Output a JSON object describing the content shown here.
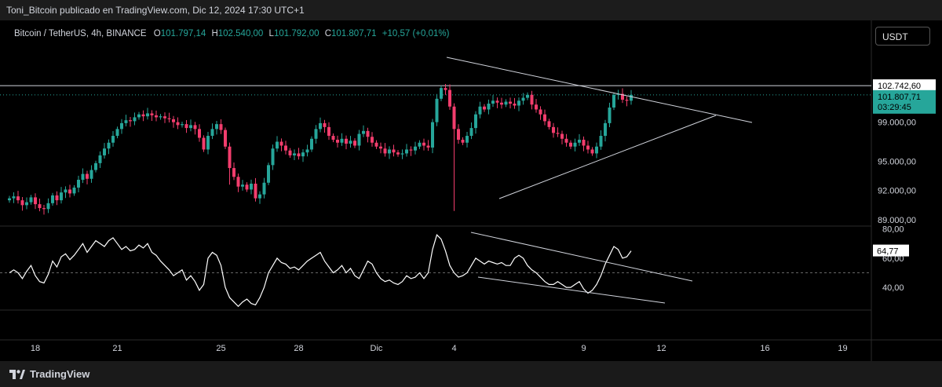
{
  "header": {
    "publisher_line": "Toni_Bitcoin publicado en TradingView.com, Dic 12, 2024 17:30 UTC+1"
  },
  "legend": {
    "symbol": "Bitcoin / TetherUS, 4h, BINANCE",
    "o_label": "O",
    "o_value": "101.797,14",
    "h_label": "H",
    "h_value": "102.540,00",
    "l_label": "L",
    "l_value": "101.792,00",
    "c_label": "C",
    "c_value": "101.807,71",
    "change": "+10,57 (+0,01%)"
  },
  "toolbar": {
    "currency_button": "USDT"
  },
  "footer": {
    "brand": "TradingView"
  },
  "colors": {
    "up": "#26a69a",
    "down": "#f23d6d",
    "price_tag": "#26a69a",
    "line": "#ffffff",
    "grid": "#2a2a2a"
  },
  "chart_data": [
    {
      "type": "candlestick",
      "ylim": [
        89000,
        104600
      ],
      "y_ticks": [
        "102.742,60",
        "99.000,00",
        "95.000,00",
        "92.000,00",
        "89.000,00"
      ],
      "y_tick_values": [
        102742.6,
        99000,
        95000,
        92000,
        89000
      ],
      "horizontal_line": 102742.6,
      "last_price": "101.807,71",
      "countdown": "03:29:45",
      "closes": [
        91200,
        91400,
        91000,
        90500,
        90800,
        91300,
        90600,
        90200,
        90100,
        90700,
        91500,
        91000,
        91800,
        92100,
        91700,
        92300,
        93100,
        93700,
        93200,
        94100,
        94800,
        95600,
        96300,
        96900,
        97600,
        98300,
        98900,
        99200,
        99100,
        99500,
        99800,
        99600,
        99900,
        99700,
        99500,
        99600,
        99400,
        99300,
        99000,
        98700,
        98800,
        98400,
        98700,
        98300,
        97400,
        96200,
        97600,
        98300,
        98800,
        98200,
        96500,
        94300,
        93400,
        92400,
        92600,
        92100,
        92700,
        91200,
        91600,
        92800,
        94600,
        96300,
        97000,
        96600,
        96100,
        95600,
        95800,
        95500,
        95900,
        96200,
        97300,
        98300,
        98900,
        98500,
        97600,
        97200,
        96900,
        97300,
        96800,
        97100,
        96600,
        97800,
        98100,
        97500,
        96900,
        96500,
        96300,
        95800,
        96200,
        95900,
        95700,
        95800,
        96200,
        96100,
        96500,
        96900,
        96600,
        96400,
        99000,
        101400,
        102500,
        102300,
        100600,
        98300,
        97200,
        96900,
        97600,
        98400,
        99800,
        100600,
        100300,
        100900,
        101200,
        101000,
        100800,
        101100,
        100900,
        100700,
        101200,
        101500,
        101800,
        100800,
        100300,
        99800,
        99100,
        98500,
        97900,
        97800,
        97300,
        96900,
        96500,
        96900,
        97200,
        96600,
        96200,
        95800,
        96500,
        97600,
        98900,
        100500,
        101800,
        101900,
        101300,
        101200,
        101800
      ],
      "annotations": {
        "triangle_upper": [
          [
            569,
            73
          ],
          [
            958,
            156
          ]
        ],
        "triangle_lower": [
          [
            636,
            253
          ],
          [
            912,
            147
          ]
        ]
      }
    },
    {
      "type": "line",
      "ylim": [
        25,
        82
      ],
      "y_ticks": [
        "80,00",
        "60,00",
        "40,00"
      ],
      "y_tick_values": [
        80,
        60,
        40
      ],
      "dashed_level": 50,
      "last_value": "64,77",
      "values": [
        50,
        52,
        50,
        46,
        51,
        55,
        48,
        44,
        43,
        49,
        58,
        54,
        61,
        63,
        59,
        62,
        66,
        70,
        64,
        68,
        72,
        70,
        68,
        72,
        74,
        70,
        66,
        68,
        65,
        66,
        69,
        67,
        70,
        64,
        62,
        58,
        55,
        52,
        48,
        50,
        52,
        45,
        48,
        44,
        38,
        42,
        60,
        64,
        62,
        55,
        40,
        33,
        30,
        27,
        30,
        32,
        29,
        28,
        33,
        40,
        50,
        55,
        60,
        57,
        56,
        53,
        54,
        52,
        55,
        58,
        60,
        62,
        64,
        58,
        54,
        50,
        52,
        55,
        50,
        53,
        48,
        46,
        52,
        58,
        56,
        50,
        46,
        44,
        45,
        43,
        42,
        44,
        48,
        46,
        47,
        50,
        46,
        50,
        66,
        76,
        73,
        65,
        55,
        50,
        47,
        48,
        50,
        55,
        60,
        58,
        56,
        58,
        57,
        56,
        57,
        55,
        55,
        60,
        62,
        60,
        55,
        52,
        50,
        47,
        44,
        42,
        42,
        44,
        42,
        40,
        40,
        42,
        44,
        39,
        36,
        38,
        42,
        48,
        56,
        62,
        68,
        66,
        60,
        61,
        65
      ],
      "annotations": {
        "channel_upper": [
          [
            600,
            296
          ],
          [
            882,
            358
          ]
        ],
        "channel_lower": [
          [
            609,
            353
          ],
          [
            847,
            386
          ]
        ]
      }
    }
  ],
  "x_axis": {
    "labels": [
      {
        "text": "18",
        "index": 6
      },
      {
        "text": "21",
        "index": 25
      },
      {
        "text": "25",
        "index": 49
      },
      {
        "text": "28",
        "index": 67
      },
      {
        "text": "Dic",
        "index": 85
      },
      {
        "text": "4",
        "index": 103
      },
      {
        "text": "9",
        "index": 133
      },
      {
        "text": "12",
        "index": 151
      },
      {
        "text": "16",
        "index": 175
      },
      {
        "text": "19",
        "index": 193
      }
    ]
  }
}
